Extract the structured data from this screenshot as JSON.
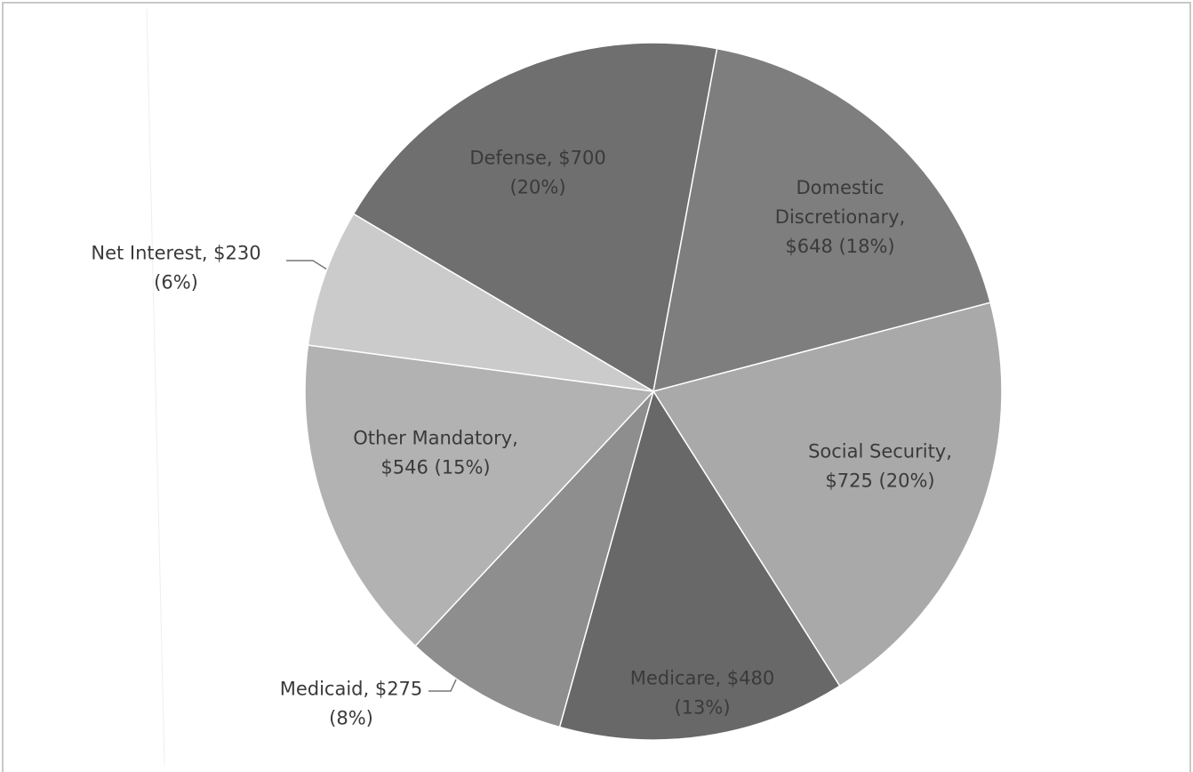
{
  "chart_data": {
    "type": "pie",
    "values": [
      700,
      648,
      725,
      480,
      275,
      546,
      230
    ],
    "value_labels": [
      [
        "Defense, $700",
        "(20%)"
      ],
      [
        "Domestic",
        "Discretionary,",
        "$648 (18%)"
      ],
      [
        "Social Security,",
        "$725 (20%)"
      ],
      [
        "Medicare, $480",
        "(13%)"
      ],
      [
        "Medicaid, $275",
        "(8%)"
      ],
      [
        "Other Mandatory,",
        "$546 (15%)"
      ],
      [
        "Net Interest, $230",
        "(6%)"
      ]
    ],
    "colors": [
      "#6f6f6f",
      "#7e7e7e",
      "#a9a9a9",
      "#686868",
      "#8e8e8e",
      "#b2b2b2",
      "#cbcbcb"
    ]
  }
}
